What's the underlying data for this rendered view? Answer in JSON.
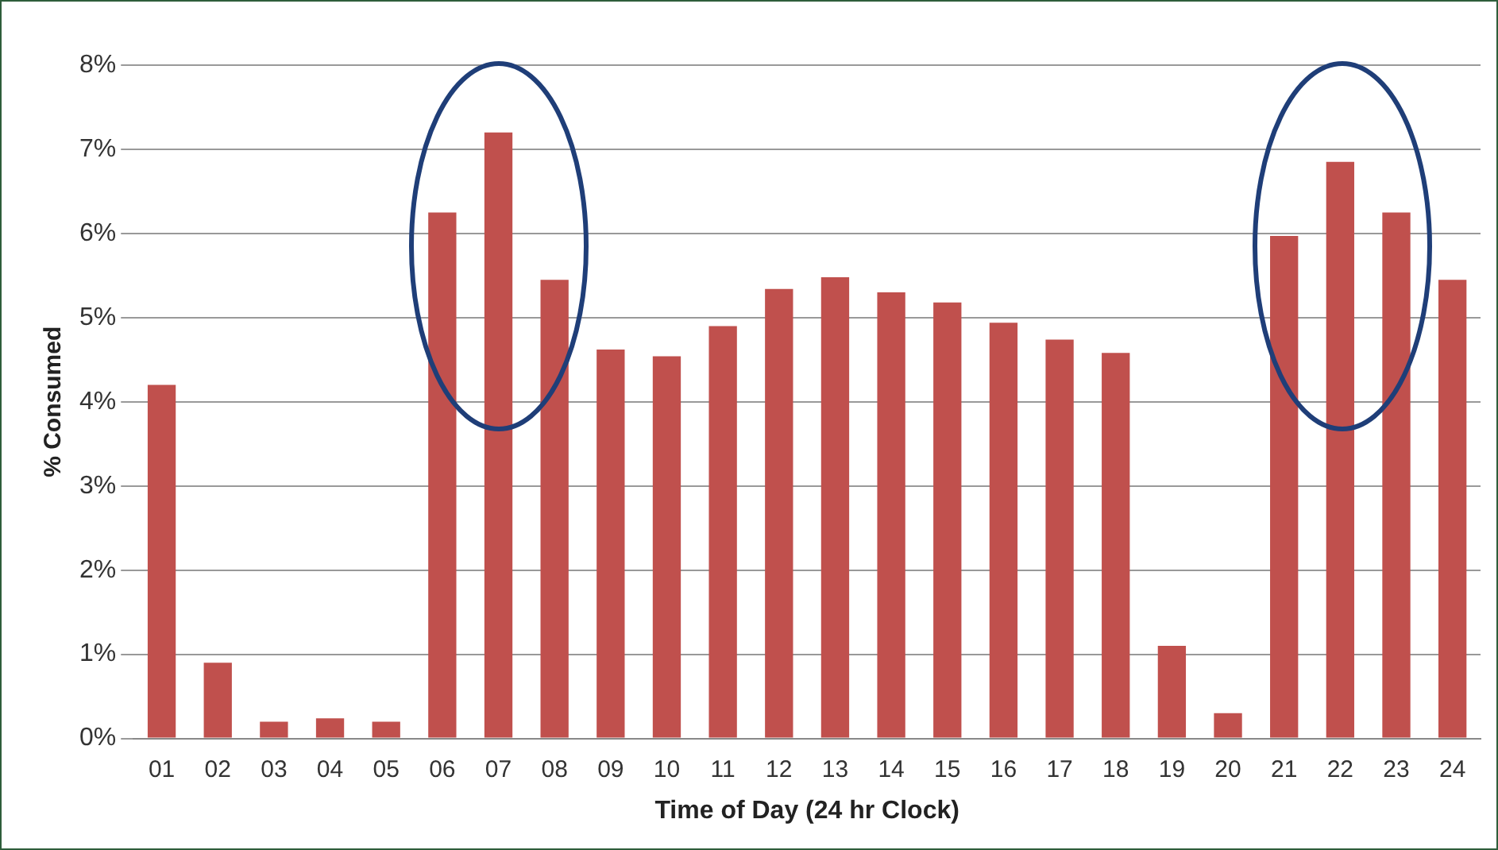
{
  "chart_data": {
    "type": "bar",
    "xlabel": "Time of Day (24 hr Clock)",
    "ylabel": "% Consumed",
    "categories": [
      "01",
      "02",
      "03",
      "04",
      "05",
      "06",
      "07",
      "08",
      "09",
      "10",
      "11",
      "12",
      "13",
      "14",
      "15",
      "16",
      "17",
      "18",
      "19",
      "20",
      "21",
      "22",
      "23",
      "24"
    ],
    "values": [
      4.2,
      0.9,
      0.2,
      0.24,
      0.2,
      6.25,
      7.2,
      5.45,
      4.62,
      4.54,
      4.9,
      5.34,
      5.48,
      5.3,
      5.18,
      4.94,
      4.74,
      4.58,
      1.1,
      0.3,
      5.97,
      6.85,
      6.25,
      5.45
    ],
    "color": "#c0504d",
    "ylim": [
      0,
      8
    ],
    "yticks": [
      {
        "value": 0,
        "label": "0%"
      },
      {
        "value": 1,
        "label": "1%"
      },
      {
        "value": 2,
        "label": "2%"
      },
      {
        "value": 3,
        "label": "3%"
      },
      {
        "value": 4,
        "label": "4%"
      },
      {
        "value": 5,
        "label": "5%"
      },
      {
        "value": 6,
        "label": "6%"
      },
      {
        "value": 7,
        "label": "7%"
      },
      {
        "value": 8,
        "label": "8%"
      }
    ],
    "grid": "y"
  }
}
